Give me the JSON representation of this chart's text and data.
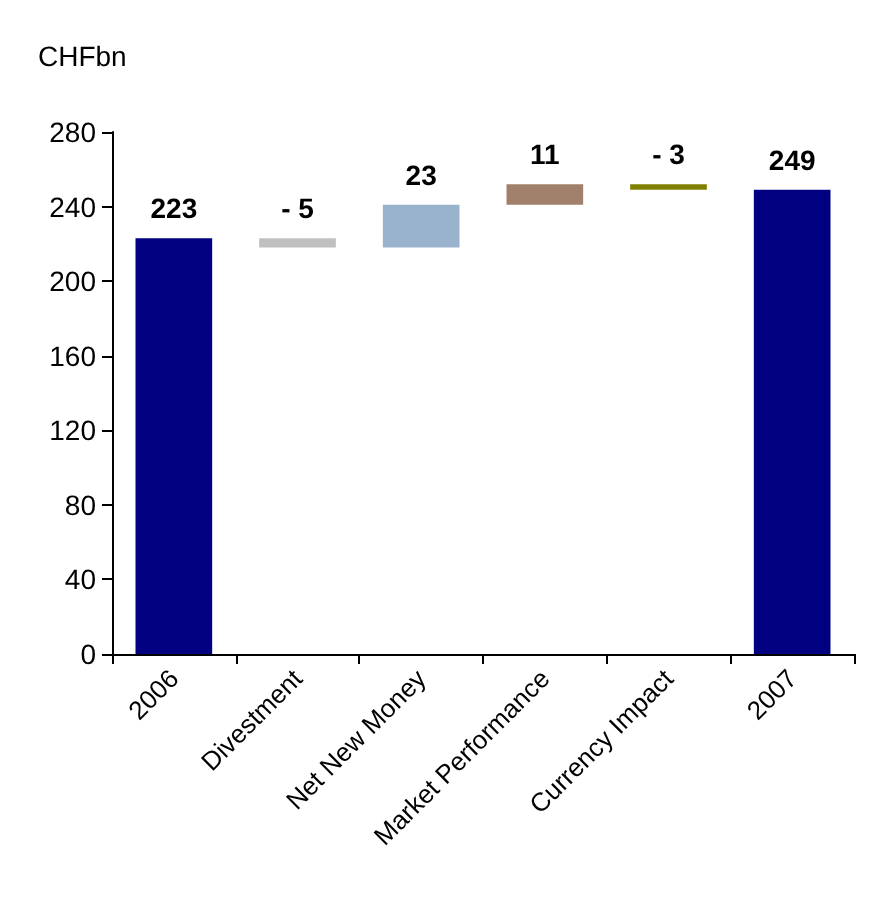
{
  "chart_data": {
    "type": "bar",
    "ylabel": "CHFbn",
    "categories": [
      "2006",
      "Divestment",
      "Net New Money",
      "Market Performance",
      "Currency Impact",
      "2007"
    ],
    "values": [
      223,
      -5,
      23,
      11,
      -3,
      249
    ],
    "base": [
      0,
      223,
      218,
      241,
      252,
      0
    ],
    "colors": [
      "#000080",
      "#c0c0c0",
      "#99b3cc",
      "#a0806a",
      "#808000",
      "#000080"
    ],
    "value_labels": [
      "223",
      "- 5",
      "23",
      "11",
      "- 3",
      "249"
    ],
    "ylim": [
      0,
      280
    ],
    "yticks": [
      0,
      40,
      80,
      120,
      160,
      200,
      240,
      280
    ],
    "grid": false
  }
}
